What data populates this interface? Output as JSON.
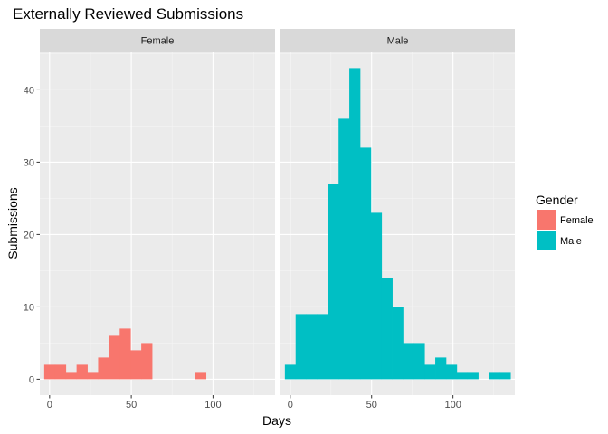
{
  "chart_data": {
    "type": "bar",
    "title": "Externally Reviewed Submissions",
    "xlabel": "Days",
    "ylabel": "Submissions",
    "xlim": [
      -6,
      138
    ],
    "ylim": [
      -2.2,
      45.3
    ],
    "x_ticks": [
      0,
      50,
      100
    ],
    "y_ticks": [
      0,
      10,
      20,
      30,
      40
    ],
    "bin_width": 6.6,
    "grid": true,
    "legend_position": "right",
    "legend_title": "Gender",
    "facets": [
      {
        "strip": "Female",
        "name": "Female",
        "color": "#F8766D",
        "bins": [
          {
            "x0": -3.3,
            "x1": 3.3,
            "count": 2
          },
          {
            "x0": 3.3,
            "x1": 9.9,
            "count": 2
          },
          {
            "x0": 9.9,
            "x1": 16.5,
            "count": 1
          },
          {
            "x0": 16.5,
            "x1": 23.1,
            "count": 2
          },
          {
            "x0": 23.1,
            "x1": 29.7,
            "count": 1
          },
          {
            "x0": 29.7,
            "x1": 36.3,
            "count": 3
          },
          {
            "x0": 36.3,
            "x1": 42.9,
            "count": 6
          },
          {
            "x0": 42.9,
            "x1": 49.5,
            "count": 7
          },
          {
            "x0": 49.5,
            "x1": 56.1,
            "count": 4
          },
          {
            "x0": 56.1,
            "x1": 62.7,
            "count": 5
          },
          {
            "x0": 62.7,
            "x1": 69.3,
            "count": 0
          },
          {
            "x0": 69.3,
            "x1": 75.9,
            "count": 0
          },
          {
            "x0": 75.9,
            "x1": 82.5,
            "count": 0
          },
          {
            "x0": 82.5,
            "x1": 89.1,
            "count": 0
          },
          {
            "x0": 89.1,
            "x1": 95.7,
            "count": 1
          },
          {
            "x0": 95.7,
            "x1": 102.3,
            "count": 0
          },
          {
            "x0": 102.3,
            "x1": 108.9,
            "count": 0
          },
          {
            "x0": 108.9,
            "x1": 115.5,
            "count": 0
          },
          {
            "x0": 115.5,
            "x1": 122.1,
            "count": 0
          },
          {
            "x0": 122.1,
            "x1": 128.7,
            "count": 0
          },
          {
            "x0": 128.7,
            "x1": 135.3,
            "count": 0
          }
        ]
      },
      {
        "strip": "Male",
        "name": "Male",
        "color": "#00BFC4",
        "bins": [
          {
            "x0": -3.3,
            "x1": 3.3,
            "count": 2
          },
          {
            "x0": 3.3,
            "x1": 9.9,
            "count": 9
          },
          {
            "x0": 9.9,
            "x1": 16.5,
            "count": 9
          },
          {
            "x0": 16.5,
            "x1": 23.1,
            "count": 9
          },
          {
            "x0": 23.1,
            "x1": 29.7,
            "count": 27
          },
          {
            "x0": 29.7,
            "x1": 36.3,
            "count": 36
          },
          {
            "x0": 36.3,
            "x1": 42.9,
            "count": 43
          },
          {
            "x0": 42.9,
            "x1": 49.5,
            "count": 32
          },
          {
            "x0": 49.5,
            "x1": 56.1,
            "count": 23
          },
          {
            "x0": 56.1,
            "x1": 62.7,
            "count": 14
          },
          {
            "x0": 62.7,
            "x1": 69.3,
            "count": 10
          },
          {
            "x0": 69.3,
            "x1": 75.9,
            "count": 5
          },
          {
            "x0": 75.9,
            "x1": 82.5,
            "count": 5
          },
          {
            "x0": 82.5,
            "x1": 89.1,
            "count": 2
          },
          {
            "x0": 89.1,
            "x1": 95.7,
            "count": 3
          },
          {
            "x0": 95.7,
            "x1": 102.3,
            "count": 2
          },
          {
            "x0": 102.3,
            "x1": 108.9,
            "count": 1
          },
          {
            "x0": 108.9,
            "x1": 115.5,
            "count": 1
          },
          {
            "x0": 115.5,
            "x1": 122.1,
            "count": 0
          },
          {
            "x0": 122.1,
            "x1": 128.7,
            "count": 1
          },
          {
            "x0": 128.7,
            "x1": 135.3,
            "count": 1
          }
        ]
      }
    ],
    "legend": [
      {
        "label": "Female",
        "color": "#F8766D"
      },
      {
        "label": "Male",
        "color": "#00BFC4"
      }
    ]
  }
}
